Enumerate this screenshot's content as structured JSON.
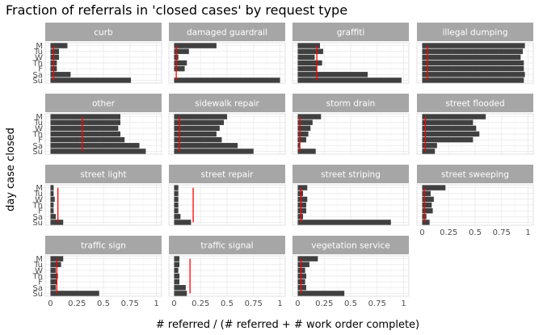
{
  "chart_data": {
    "type": "bar",
    "orientation": "horizontal",
    "title": "Fraction of referrals in 'closed cases' by request type",
    "xlabel": "# referred / (# referred + # work order complete)",
    "ylabel": "day case closed",
    "xlim": [
      0,
      1
    ],
    "xticks": [
      0,
      0.25,
      0.5,
      0.75,
      1
    ],
    "xtick_labels": [
      "0",
      "0.25",
      "0.5",
      "0.75",
      "1"
    ],
    "categories": [
      "M",
      "Tu",
      "W",
      "Th",
      "F",
      "Sa",
      "Su"
    ],
    "bar_color": "#404040",
    "line_color": "#ff0000",
    "strip_color": "#a6a6a6",
    "grid": true,
    "layout": {
      "columns": 4,
      "rows": 4
    },
    "facets": [
      {
        "name": "curb",
        "values": [
          0.16,
          0.08,
          0.08,
          0.06,
          0.06,
          0.19,
          0.76
        ],
        "mean": 0.03
      },
      {
        "name": "damaged guardrail",
        "values": [
          0.4,
          0.14,
          0.04,
          0.12,
          0.1,
          0.0,
          1.0
        ],
        "mean": 0.02
      },
      {
        "name": "graffiti",
        "values": [
          0.21,
          0.24,
          0.16,
          0.23,
          0.18,
          0.66,
          0.98
        ],
        "mean": 0.18
      },
      {
        "name": "illegal dumping",
        "values": [
          0.97,
          0.95,
          0.93,
          0.96,
          0.96,
          0.97,
          0.96
        ],
        "mean": 0.05
      },
      {
        "name": "other",
        "values": [
          0.66,
          0.66,
          0.64,
          0.66,
          0.7,
          0.84,
          0.9
        ],
        "mean": 0.3
      },
      {
        "name": "sidewalk repair",
        "values": [
          0.5,
          0.47,
          0.43,
          0.4,
          0.45,
          0.6,
          0.75
        ],
        "mean": 0.05
      },
      {
        "name": "storm drain",
        "values": [
          0.22,
          0.14,
          0.12,
          0.1,
          0.08,
          0.02,
          0.17
        ],
        "mean": 0.02
      },
      {
        "name": "street flooded",
        "values": [
          0.6,
          0.48,
          0.51,
          0.54,
          0.48,
          0.14,
          0.12
        ],
        "mean": 0.03
      },
      {
        "name": "street light",
        "values": [
          0.03,
          0.03,
          0.04,
          0.03,
          0.03,
          0.05,
          0.12
        ],
        "mean": 0.07
      },
      {
        "name": "street repair",
        "values": [
          0.04,
          0.04,
          0.04,
          0.04,
          0.04,
          0.06,
          0.16
        ],
        "mean": 0.18
      },
      {
        "name": "street striping",
        "values": [
          0.09,
          0.05,
          0.09,
          0.08,
          0.08,
          0.05,
          0.88
        ],
        "mean": 0.03
      },
      {
        "name": "street sweeping",
        "values": [
          0.22,
          0.08,
          0.11,
          0.09,
          0.1,
          0.04,
          0.07
        ],
        "mean": 0.02
      },
      {
        "name": "traffic sign",
        "values": [
          0.12,
          0.1,
          0.05,
          0.07,
          0.06,
          0.05,
          0.46
        ],
        "mean": 0.06
      },
      {
        "name": "traffic signal",
        "values": [
          0.05,
          0.05,
          0.04,
          0.05,
          0.05,
          0.11,
          0.12
        ],
        "mean": 0.15
      },
      {
        "name": "vegetation service",
        "values": [
          0.19,
          0.11,
          0.07,
          0.08,
          0.07,
          0.08,
          0.44
        ],
        "mean": 0.03
      }
    ]
  }
}
